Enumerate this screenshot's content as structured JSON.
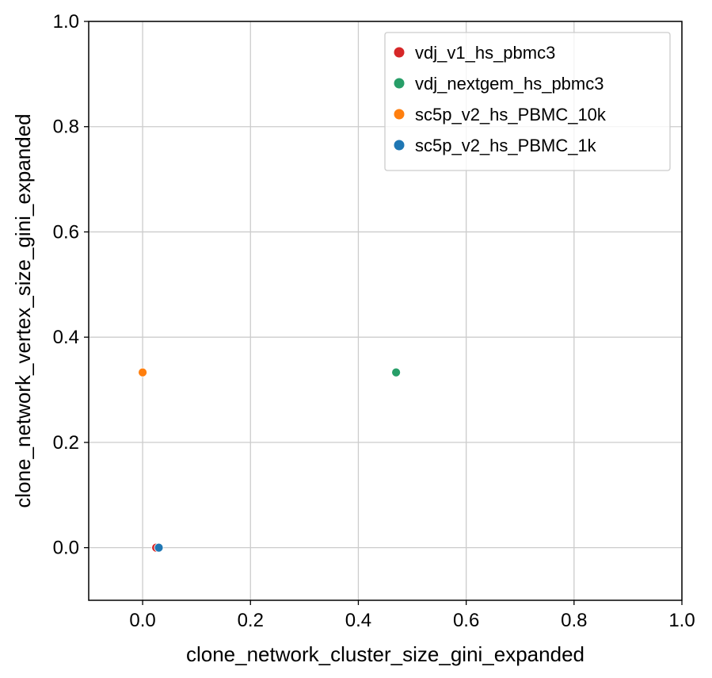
{
  "chart_data": {
    "type": "scatter",
    "title": "",
    "xlabel": "clone_network_cluster_size_gini_expanded",
    "ylabel": "clone_network_vertex_size_gini_expanded",
    "xlim": [
      -0.1,
      1.0
    ],
    "ylim": [
      -0.1,
      1.0
    ],
    "xticks": [
      0.0,
      0.2,
      0.4,
      0.6,
      0.8,
      1.0
    ],
    "yticks": [
      0.0,
      0.2,
      0.4,
      0.6,
      0.8,
      1.0
    ],
    "xtick_labels": [
      "0.0",
      "0.2",
      "0.4",
      "0.6",
      "0.8",
      "1.0"
    ],
    "ytick_labels": [
      "0.0",
      "0.2",
      "0.4",
      "0.6",
      "0.8",
      "1.0"
    ],
    "grid": true,
    "legend_position": "top-right",
    "series": [
      {
        "name": "vdj_v1_hs_pbmc3",
        "color": "#d62728",
        "points": [
          {
            "x": 0.025,
            "y": 0.0
          }
        ]
      },
      {
        "name": "vdj_nextgem_hs_pbmc3",
        "color": "#279e68",
        "points": [
          {
            "x": 0.47,
            "y": 0.333
          }
        ]
      },
      {
        "name": "sc5p_v2_hs_PBMC_10k",
        "color": "#ff7f0e",
        "points": [
          {
            "x": 0.0,
            "y": 0.333
          }
        ]
      },
      {
        "name": "sc5p_v2_hs_PBMC_1k",
        "color": "#1f77b4",
        "points": [
          {
            "x": 0.03,
            "y": 0.0
          }
        ]
      }
    ]
  }
}
